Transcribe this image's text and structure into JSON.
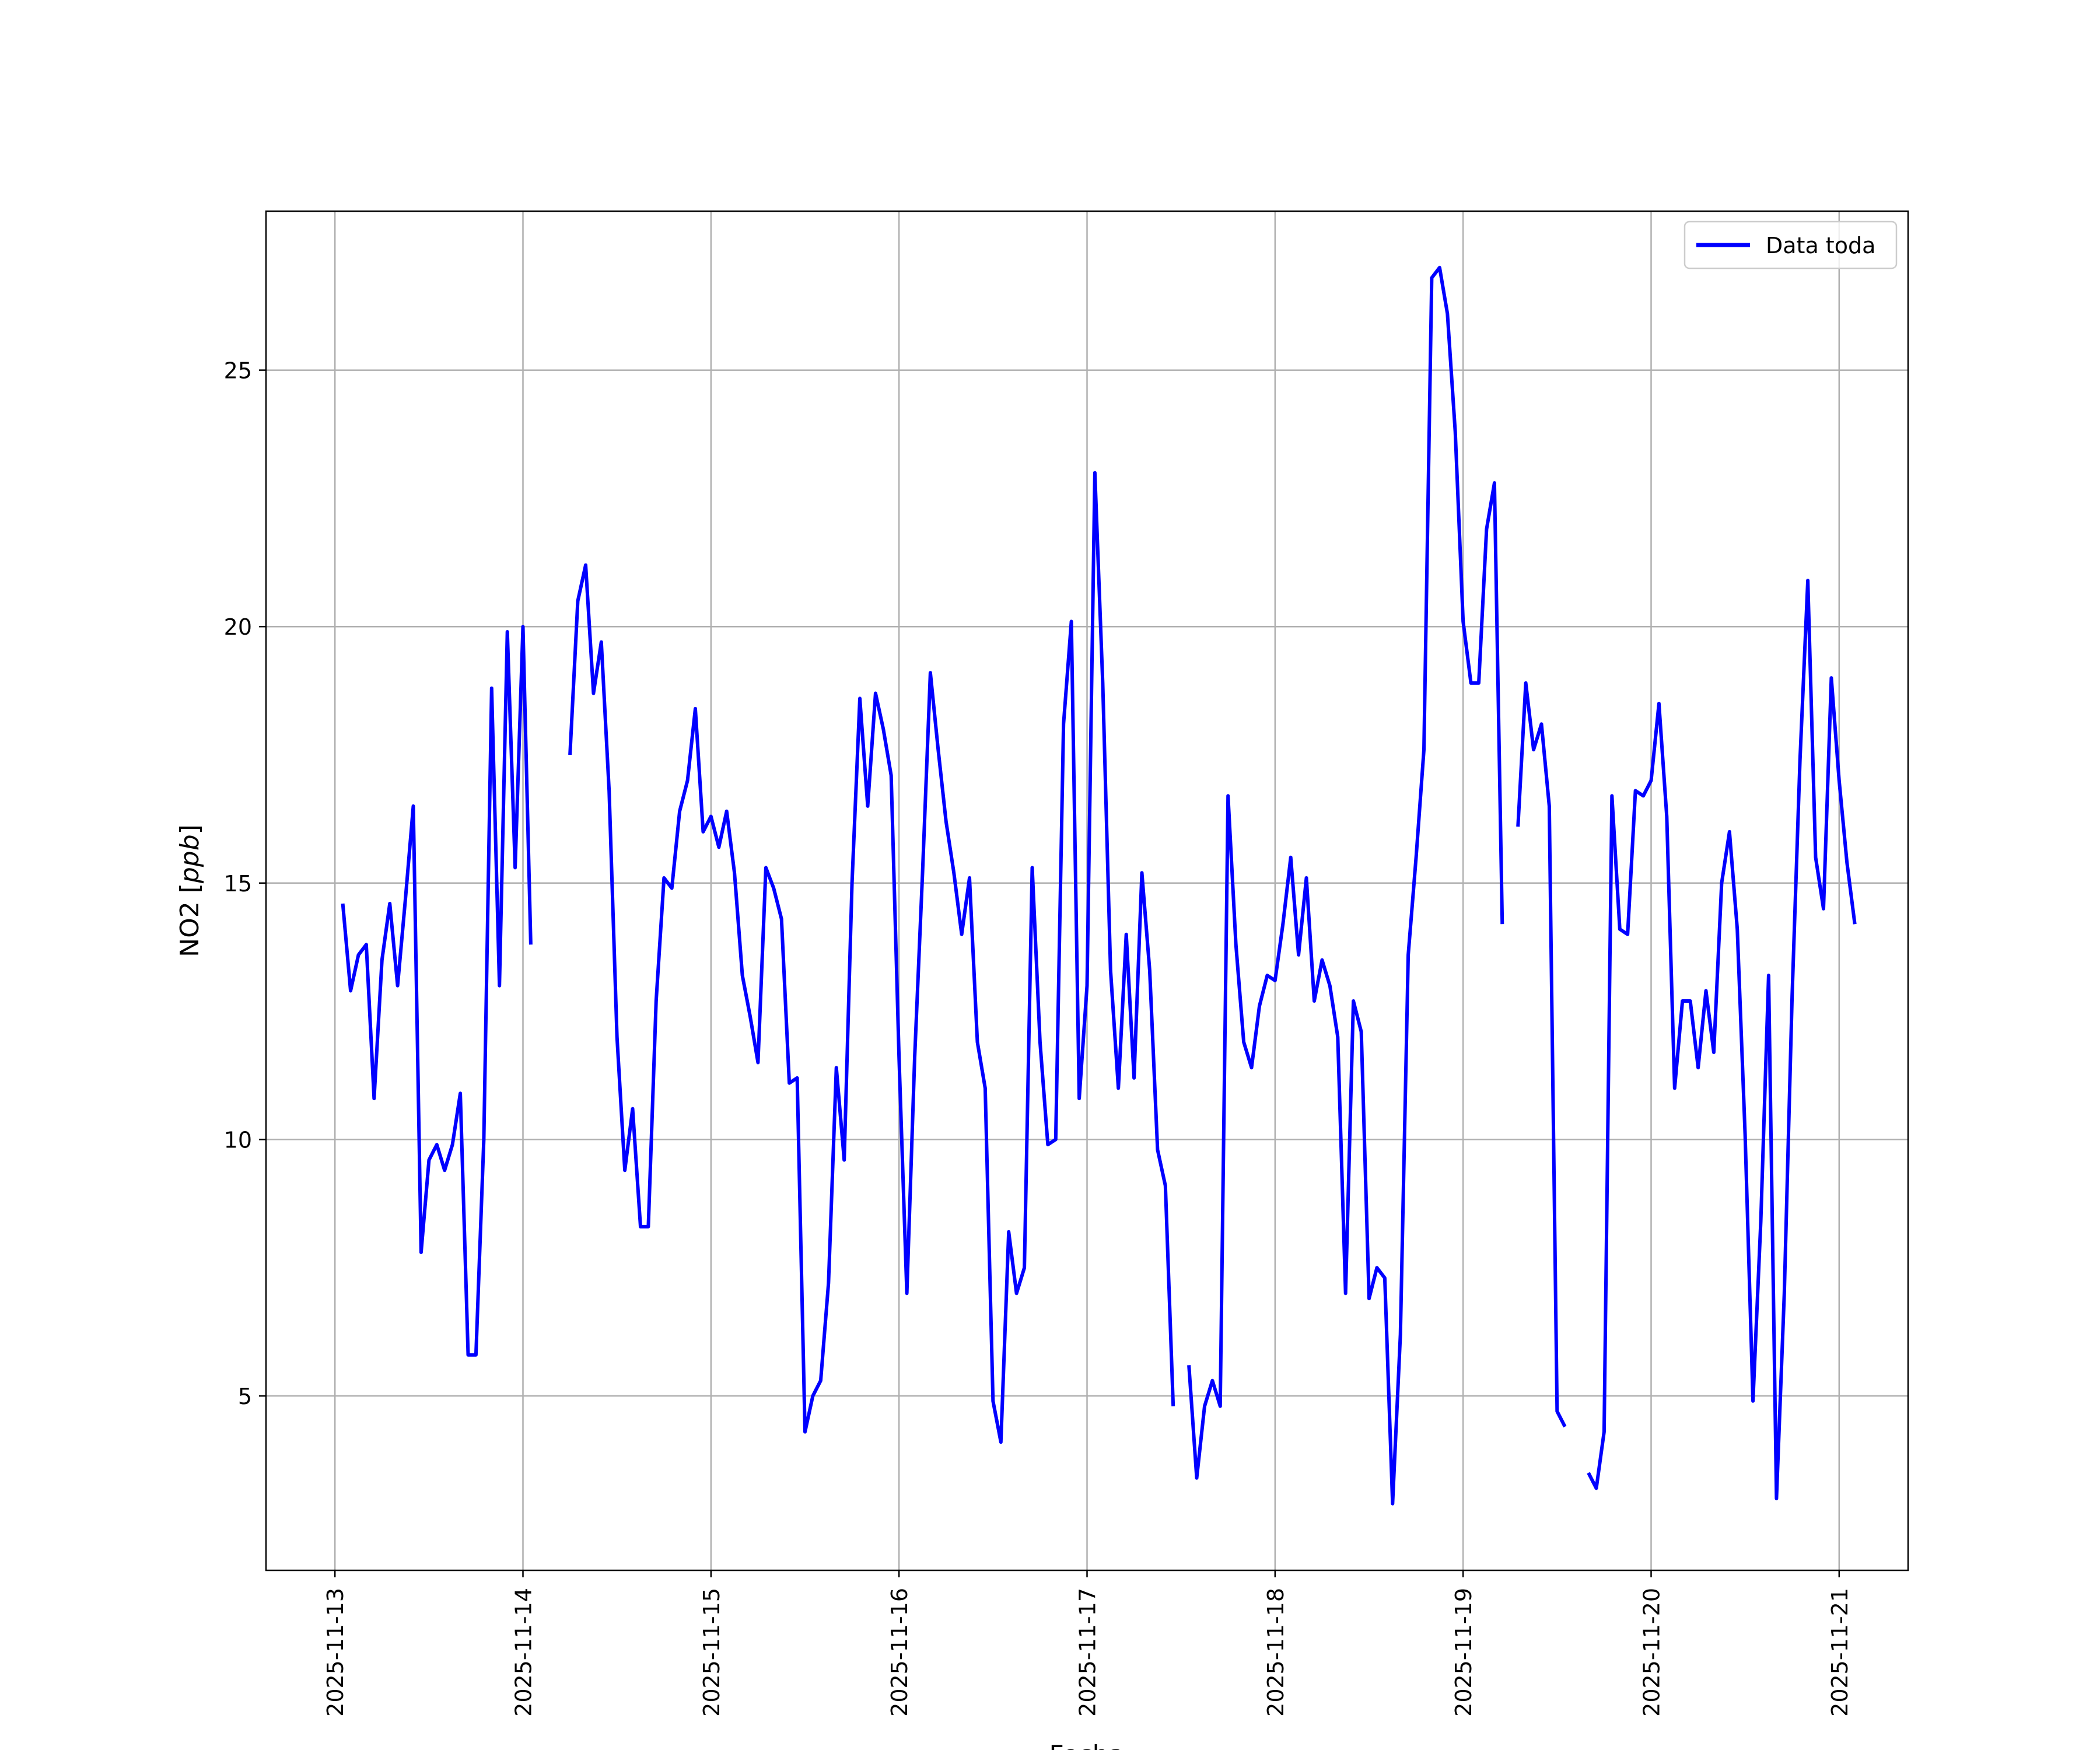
{
  "chart_data": {
    "type": "line",
    "title": "",
    "xlabel": "Fecha",
    "ylabel_main": "NO2 [",
    "ylabel_unit": "ppb",
    "ylabel_close": "]",
    "xlim": [
      "2025-11-12T15:12",
      "2025-11-21T08:48"
    ],
    "ylim": [
      1.6,
      28.1
    ],
    "x_ticks": [
      "2025-11-13",
      "2025-11-14",
      "2025-11-15",
      "2025-11-16",
      "2025-11-17",
      "2025-11-18",
      "2025-11-19",
      "2025-11-20",
      "2025-11-21"
    ],
    "y_ticks": [
      5,
      10,
      15,
      20,
      25
    ],
    "grid": true,
    "legend_position": "top-right",
    "series": [
      {
        "name": "Data toda",
        "color": "#0000ff",
        "x_start": "2025-11-13T01:00",
        "step_hours": 1,
        "values": [
          14.6,
          12.9,
          13.6,
          13.8,
          10.8,
          13.5,
          14.6,
          13.0,
          14.7,
          16.5,
          7.8,
          9.6,
          9.9,
          9.4,
          9.9,
          10.9,
          5.8,
          5.8,
          10.0,
          18.8,
          13.0,
          19.9,
          15.3,
          20.0,
          13.8,
          null,
          null,
          null,
          null,
          17.5,
          20.5,
          21.2,
          18.7,
          19.7,
          16.8,
          12.0,
          9.4,
          10.6,
          8.3,
          8.3,
          12.7,
          15.1,
          14.9,
          16.4,
          17.0,
          18.4,
          16.0,
          16.3,
          15.7,
          16.4,
          15.2,
          13.2,
          12.4,
          11.5,
          15.3,
          14.9,
          14.3,
          11.1,
          11.2,
          4.3,
          5.0,
          5.3,
          7.2,
          11.4,
          9.6,
          15.0,
          18.6,
          16.5,
          18.7,
          18.0,
          17.1,
          11.6,
          7.0,
          11.6,
          15.2,
          19.1,
          17.6,
          16.2,
          15.2,
          14.0,
          15.1,
          11.9,
          11.0,
          4.9,
          4.1,
          8.2,
          7.0,
          7.5,
          15.3,
          11.9,
          9.9,
          10.0,
          18.1,
          20.1,
          10.8,
          13.0,
          23.0,
          18.9,
          13.3,
          11.0,
          14.0,
          11.2,
          15.2,
          13.3,
          9.8,
          9.1,
          4.8,
          null,
          5.6,
          3.4,
          4.8,
          5.3,
          4.8,
          16.7,
          13.8,
          11.9,
          11.4,
          12.6,
          13.2,
          13.1,
          14.2,
          15.5,
          13.6,
          15.1,
          12.7,
          13.5,
          13.0,
          12.0,
          7.0,
          12.7,
          12.1,
          6.9,
          7.5,
          7.3,
          2.9,
          6.2,
          13.6,
          15.5,
          17.6,
          26.8,
          27.0,
          26.1,
          23.8,
          20.1,
          18.9,
          18.9,
          21.9,
          22.8,
          14.2,
          null,
          16.1,
          18.9,
          17.6,
          18.1,
          16.5,
          4.7,
          4.4,
          null,
          null,
          3.5,
          3.2,
          4.3,
          16.7,
          14.1,
          14.0,
          16.8,
          16.7,
          17.0,
          18.5,
          16.3,
          11.0,
          12.7,
          12.7,
          11.4,
          12.9,
          11.7,
          15.0,
          16.0,
          14.1,
          10.1,
          4.9,
          8.4,
          13.2,
          3.0,
          7.0,
          12.8,
          17.4,
          20.9,
          15.5,
          14.5,
          19.0,
          17.0,
          15.4,
          14.2
        ]
      }
    ]
  }
}
